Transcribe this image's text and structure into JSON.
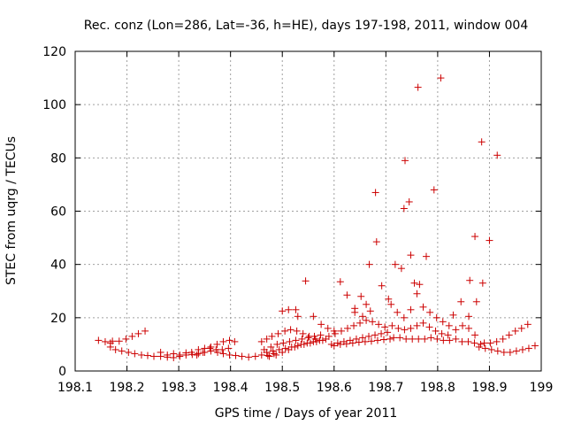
{
  "chart_data": {
    "type": "scatter",
    "title": "Rec. conz (Lon=286, Lat=-36, h=HE), days 197-198, 2011, window 004",
    "xlabel": "GPS time / Days of year 2011",
    "ylabel": "STEC from uqrg / TECUs",
    "xlim": [
      198.1,
      199.0
    ],
    "ylim": [
      0,
      120
    ],
    "xticks": [
      "198.1",
      "198.2",
      "198.3",
      "198.4",
      "198.5",
      "198.6",
      "198.7",
      "198.8",
      "198.9",
      "199"
    ],
    "yticks": [
      "0",
      "20",
      "40",
      "60",
      "80",
      "100",
      "120"
    ],
    "grid": true,
    "marker": "+",
    "series": [
      {
        "name": "STEC",
        "color": "#cc0000",
        "points": [
          [
            198.145,
            11.5
          ],
          [
            198.158,
            11.0
          ],
          [
            198.168,
            10.5
          ],
          [
            198.172,
            11.2
          ],
          [
            198.185,
            11.2
          ],
          [
            198.198,
            12.0
          ],
          [
            198.21,
            13.0
          ],
          [
            198.222,
            14.0
          ],
          [
            198.235,
            15.0
          ],
          [
            198.168,
            9.0
          ],
          [
            198.178,
            8.0
          ],
          [
            198.19,
            7.5
          ],
          [
            198.203,
            7.0
          ],
          [
            198.215,
            6.5
          ],
          [
            198.228,
            6.0
          ],
          [
            198.24,
            5.8
          ],
          [
            198.252,
            5.5
          ],
          [
            198.265,
            7.0
          ],
          [
            198.278,
            6.0
          ],
          [
            198.29,
            6.5
          ],
          [
            198.302,
            6.0
          ],
          [
            198.314,
            6.8
          ],
          [
            198.325,
            7.0
          ],
          [
            198.338,
            8.0
          ],
          [
            198.35,
            8.5
          ],
          [
            198.362,
            9.0
          ],
          [
            198.374,
            10.0
          ],
          [
            198.386,
            11.0
          ],
          [
            198.398,
            11.5
          ],
          [
            198.265,
            5.5
          ],
          [
            198.278,
            5.2
          ],
          [
            198.29,
            5.0
          ],
          [
            198.302,
            5.5
          ],
          [
            198.314,
            6.0
          ],
          [
            198.326,
            6.2
          ],
          [
            198.338,
            6.5
          ],
          [
            198.35,
            7.0
          ],
          [
            198.362,
            7.5
          ],
          [
            198.375,
            7.0
          ],
          [
            198.386,
            6.5
          ],
          [
            198.398,
            6.0
          ],
          [
            198.41,
            5.8
          ],
          [
            198.422,
            5.5
          ],
          [
            198.435,
            5.2
          ],
          [
            198.448,
            5.5
          ],
          [
            198.46,
            6.0
          ],
          [
            198.472,
            5.8
          ],
          [
            198.484,
            6.5
          ],
          [
            198.335,
            6.0
          ],
          [
            198.347,
            7.0
          ],
          [
            198.36,
            8.5
          ],
          [
            198.372,
            8.0
          ],
          [
            198.384,
            8.0
          ],
          [
            198.396,
            8.5
          ],
          [
            198.408,
            11.0
          ],
          [
            198.46,
            11.0
          ],
          [
            198.47,
            12.0
          ],
          [
            198.48,
            13.0
          ],
          [
            198.492,
            14.0
          ],
          [
            198.505,
            15.0
          ],
          [
            198.516,
            15.5
          ],
          [
            198.528,
            15.0
          ],
          [
            198.54,
            14.0
          ],
          [
            198.552,
            13.0
          ],
          [
            198.564,
            12.0
          ],
          [
            198.465,
            8.0
          ],
          [
            198.478,
            9.0
          ],
          [
            198.49,
            10.0
          ],
          [
            198.502,
            10.5
          ],
          [
            198.514,
            11.0
          ],
          [
            198.526,
            11.5
          ],
          [
            198.538,
            12.0
          ],
          [
            198.55,
            12.5
          ],
          [
            198.562,
            13.0
          ],
          [
            198.574,
            13.5
          ],
          [
            198.47,
            7.0
          ],
          [
            198.482,
            7.5
          ],
          [
            198.494,
            8.0
          ],
          [
            198.506,
            8.5
          ],
          [
            198.518,
            9.0
          ],
          [
            198.53,
            9.5
          ],
          [
            198.542,
            10.0
          ],
          [
            198.554,
            10.5
          ],
          [
            198.566,
            11.0
          ],
          [
            198.578,
            11.5
          ],
          [
            198.475,
            5.5
          ],
          [
            198.488,
            6.0
          ],
          [
            198.5,
            7.0
          ],
          [
            198.512,
            8.0
          ],
          [
            198.524,
            9.0
          ],
          [
            198.536,
            10.0
          ],
          [
            198.548,
            10.5
          ],
          [
            198.56,
            11.0
          ],
          [
            198.572,
            11.5
          ],
          [
            198.584,
            12.0
          ],
          [
            198.5,
            22.5
          ],
          [
            198.512,
            23.0
          ],
          [
            198.526,
            23.0
          ],
          [
            198.53,
            20.5
          ],
          [
            198.545,
            33.8
          ],
          [
            198.56,
            20.5
          ],
          [
            198.575,
            17.5
          ],
          [
            198.588,
            16.0
          ],
          [
            198.6,
            15.0
          ],
          [
            198.612,
            33.5
          ],
          [
            198.59,
            13.0
          ],
          [
            198.602,
            14.0
          ],
          [
            198.614,
            15.0
          ],
          [
            198.626,
            16.0
          ],
          [
            198.638,
            17.0
          ],
          [
            198.65,
            18.0
          ],
          [
            198.662,
            19.0
          ],
          [
            198.674,
            18.5
          ],
          [
            198.686,
            17.5
          ],
          [
            198.698,
            16.5
          ],
          [
            198.595,
            10.0
          ],
          [
            198.607,
            10.5
          ],
          [
            198.619,
            11.0
          ],
          [
            198.631,
            11.5
          ],
          [
            198.643,
            12.0
          ],
          [
            198.655,
            12.5
          ],
          [
            198.667,
            13.0
          ],
          [
            198.679,
            13.5
          ],
          [
            198.691,
            14.0
          ],
          [
            198.703,
            14.5
          ],
          [
            198.6,
            9.5
          ],
          [
            198.612,
            10.0
          ],
          [
            198.624,
            10.2
          ],
          [
            198.636,
            10.5
          ],
          [
            198.648,
            10.8
          ],
          [
            198.66,
            11.0
          ],
          [
            198.672,
            11.2
          ],
          [
            198.684,
            11.5
          ],
          [
            198.696,
            11.8
          ],
          [
            198.708,
            12.0
          ],
          [
            198.625,
            28.5
          ],
          [
            198.64,
            22.0
          ],
          [
            198.652,
            28.0
          ],
          [
            198.662,
            25.0
          ],
          [
            198.668,
            40.0
          ],
          [
            198.64,
            23.5
          ],
          [
            198.655,
            20.5
          ],
          [
            198.67,
            22.5
          ],
          [
            198.68,
            67.0
          ],
          [
            198.682,
            48.5
          ],
          [
            198.692,
            32.0
          ],
          [
            198.705,
            27.0
          ],
          [
            198.718,
            40.0
          ],
          [
            198.73,
            38.5
          ],
          [
            198.735,
            61.0
          ],
          [
            198.737,
            79.0
          ],
          [
            198.745,
            63.5
          ],
          [
            198.748,
            43.5
          ],
          [
            198.755,
            33.0
          ],
          [
            198.762,
            106.5
          ],
          [
            198.765,
            32.5
          ],
          [
            198.778,
            43.0
          ],
          [
            198.793,
            68.0
          ],
          [
            198.806,
            110.0
          ],
          [
            198.71,
            25.0
          ],
          [
            198.722,
            22.0
          ],
          [
            198.735,
            20.0
          ],
          [
            198.748,
            23.0
          ],
          [
            198.76,
            29.0
          ],
          [
            198.772,
            24.0
          ],
          [
            198.785,
            22.0
          ],
          [
            198.798,
            20.0
          ],
          [
            198.81,
            18.5
          ],
          [
            198.822,
            17.0
          ],
          [
            198.712,
            17.0
          ],
          [
            198.724,
            16.0
          ],
          [
            198.736,
            15.5
          ],
          [
            198.748,
            16.0
          ],
          [
            198.76,
            17.0
          ],
          [
            198.772,
            18.0
          ],
          [
            198.784,
            16.5
          ],
          [
            198.796,
            15.0
          ],
          [
            198.808,
            14.0
          ],
          [
            198.82,
            13.5
          ],
          [
            198.715,
            12.5
          ],
          [
            198.727,
            12.5
          ],
          [
            198.739,
            12.0
          ],
          [
            198.751,
            12.0
          ],
          [
            198.763,
            12.0
          ],
          [
            198.775,
            12.0
          ],
          [
            198.787,
            12.5
          ],
          [
            198.799,
            12.0
          ],
          [
            198.811,
            11.5
          ],
          [
            198.823,
            11.5
          ],
          [
            198.835,
            12.0
          ],
          [
            198.847,
            11.0
          ],
          [
            198.859,
            11.0
          ],
          [
            198.871,
            10.5
          ],
          [
            198.883,
            10.0
          ],
          [
            198.83,
            21.0
          ],
          [
            198.845,
            26.0
          ],
          [
            198.86,
            20.5
          ],
          [
            198.862,
            34.0
          ],
          [
            198.872,
            50.5
          ],
          [
            198.875,
            26.0
          ],
          [
            198.885,
            86.0
          ],
          [
            198.887,
            33.0
          ],
          [
            198.9,
            49.0
          ],
          [
            198.915,
            81.0
          ],
          [
            198.835,
            15.5
          ],
          [
            198.848,
            17.0
          ],
          [
            198.86,
            16.0
          ],
          [
            198.872,
            13.5
          ],
          [
            198.88,
            9.0
          ],
          [
            198.892,
            8.5
          ],
          [
            198.904,
            8.0
          ],
          [
            198.916,
            7.5
          ],
          [
            198.928,
            7.0
          ],
          [
            198.94,
            7.0
          ],
          [
            198.952,
            7.5
          ],
          [
            198.964,
            8.0
          ],
          [
            198.976,
            8.5
          ],
          [
            198.988,
            9.5
          ],
          [
            198.89,
            10.5
          ],
          [
            198.902,
            10.5
          ],
          [
            198.914,
            11.0
          ],
          [
            198.926,
            12.0
          ],
          [
            198.938,
            13.5
          ],
          [
            198.95,
            15.0
          ],
          [
            198.962,
            16.0
          ],
          [
            198.974,
            17.5
          ]
        ]
      }
    ]
  }
}
